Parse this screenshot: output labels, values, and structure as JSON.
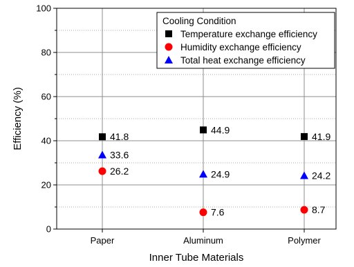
{
  "chart_data": {
    "type": "scatter",
    "categories": [
      "Paper",
      "Aluminum",
      "Polymer"
    ],
    "series": [
      {
        "name": "Temperature exchange efficiency",
        "marker": "square",
        "color": "#000000",
        "values": [
          41.8,
          44.9,
          41.9
        ],
        "labels": [
          "41.8",
          "44.9",
          "41.9"
        ]
      },
      {
        "name": "Humidity exchange efficiency",
        "marker": "circle",
        "color": "#ff0000",
        "values": [
          26.2,
          7.6,
          8.7
        ],
        "labels": [
          "26.2",
          "7.6",
          "8.7"
        ]
      },
      {
        "name": "Total heat exchange efficiency",
        "marker": "triangle",
        "color": "#0000ff",
        "values": [
          33.6,
          24.9,
          24.2
        ],
        "labels": [
          "33.6",
          "24.9",
          "24.2"
        ]
      }
    ],
    "legend_title": "Cooling Condition",
    "legend_position": "top-right",
    "xlabel": "Inner Tube Materials",
    "ylabel": "Efficiency (%)",
    "ylim": [
      0,
      100
    ],
    "yticks": [
      0,
      20,
      40,
      60,
      80,
      100
    ],
    "ytick_labels": [
      "0",
      "20",
      "40",
      "60",
      "80",
      "100"
    ],
    "grid": true
  }
}
